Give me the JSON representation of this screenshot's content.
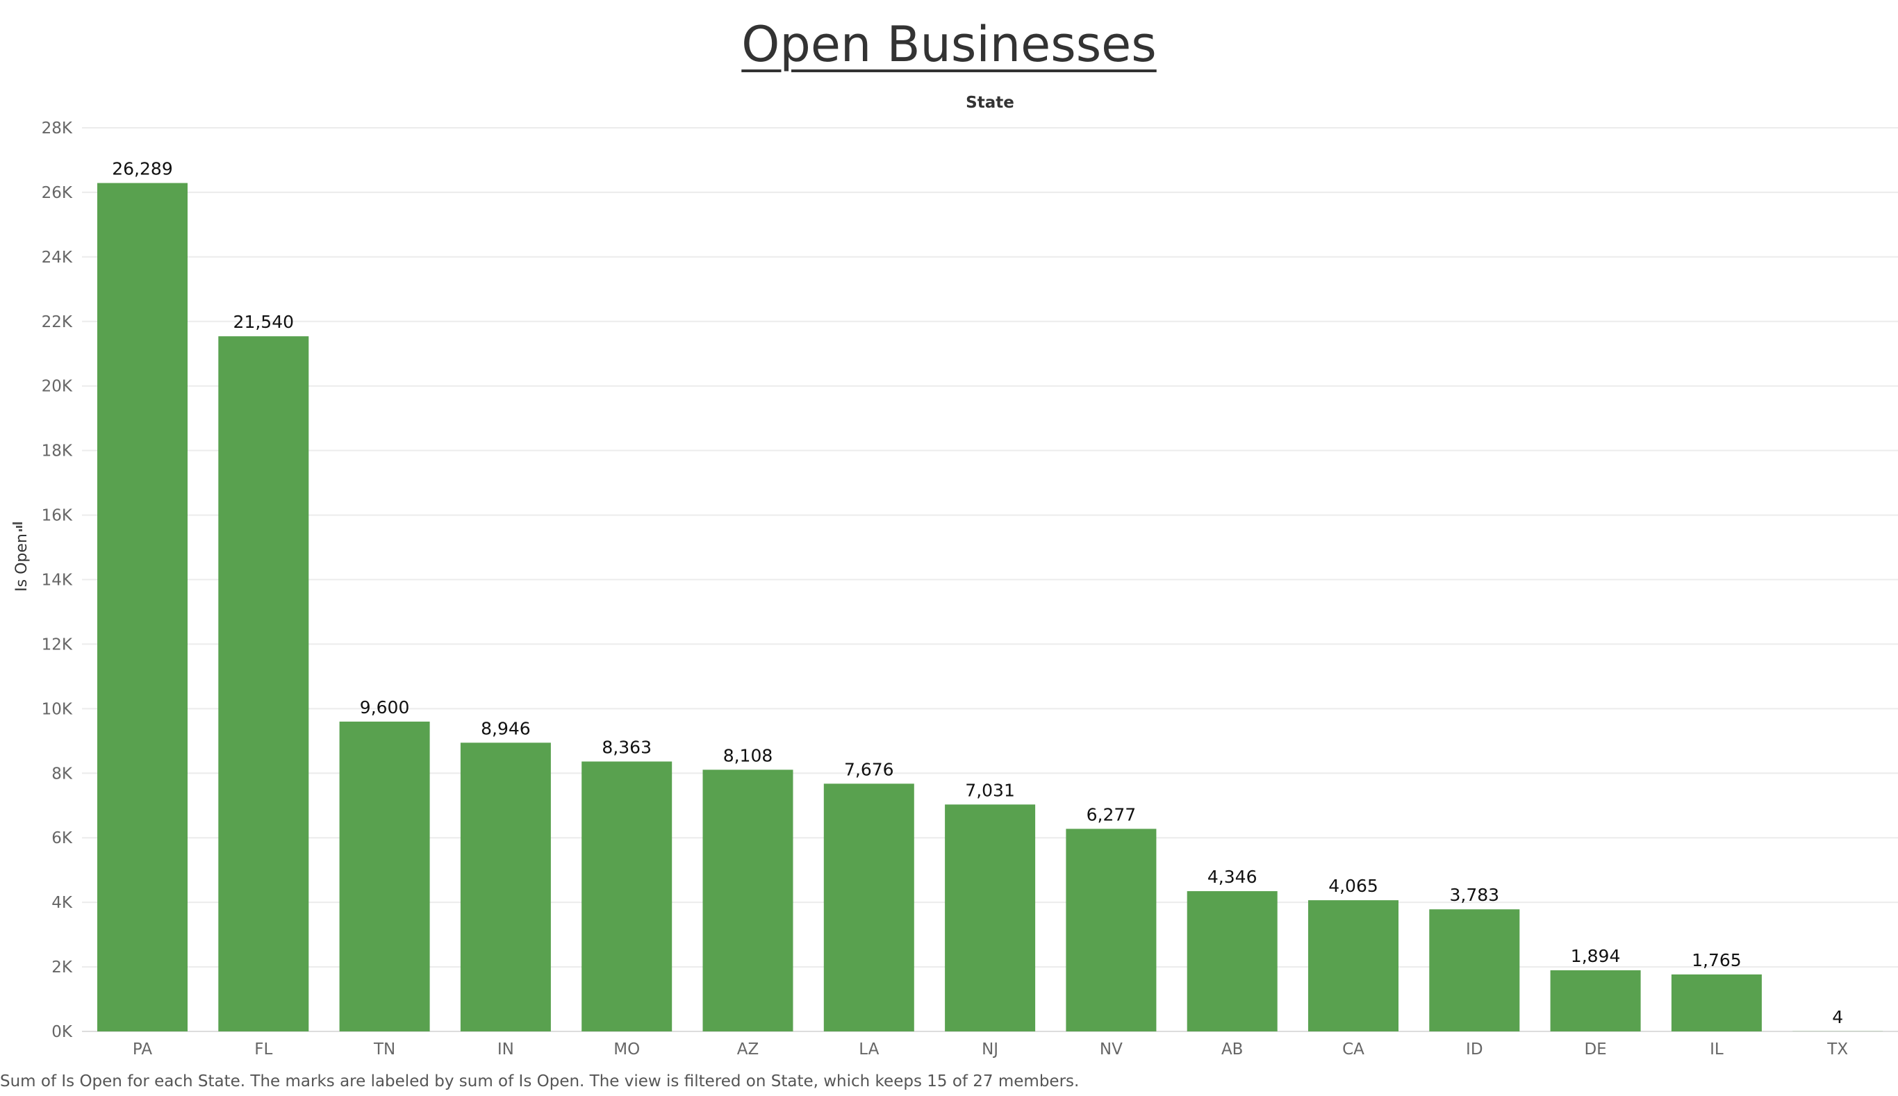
{
  "page": {
    "caption": "Sum of Is Open for each State.  The marks are labeled by sum of Is Open. The view is filtered on State, which keeps 15 of 27 members."
  },
  "colors": {
    "bar": "#59a14f",
    "grid": "#ececec",
    "axis_text": "#666666",
    "label_text": "#111111",
    "title_text": "#333333"
  },
  "icons": {
    "ylabel_sort": "sort-descending-icon"
  },
  "chart_data": {
    "type": "bar",
    "title": "Open Businesses",
    "header_label": "State",
    "ylabel": "Is Open",
    "xlabel": "",
    "categories": [
      "PA",
      "FL",
      "TN",
      "IN",
      "MO",
      "AZ",
      "LA",
      "NJ",
      "NV",
      "AB",
      "CA",
      "ID",
      "DE",
      "IL",
      "TX"
    ],
    "values": [
      26289,
      21540,
      9600,
      8946,
      8363,
      8108,
      7676,
      7031,
      6277,
      4346,
      4065,
      3783,
      1894,
      1765,
      4
    ],
    "value_labels": [
      "26,289",
      "21,540",
      "9,600",
      "8,946",
      "8,363",
      "8,108",
      "7,676",
      "7,031",
      "6,277",
      "4,346",
      "4,065",
      "3,783",
      "1,894",
      "1,765",
      "4"
    ],
    "yticks": [
      0,
      2000,
      4000,
      6000,
      8000,
      10000,
      12000,
      14000,
      16000,
      18000,
      20000,
      22000,
      24000,
      26000,
      28000
    ],
    "ytick_labels": [
      "0K",
      "2K",
      "4K",
      "6K",
      "8K",
      "10K",
      "12K",
      "14K",
      "16K",
      "18K",
      "20K",
      "22K",
      "24K",
      "26K",
      "28K"
    ],
    "ylim": [
      0,
      28000
    ],
    "grid": true,
    "legend": "none"
  }
}
